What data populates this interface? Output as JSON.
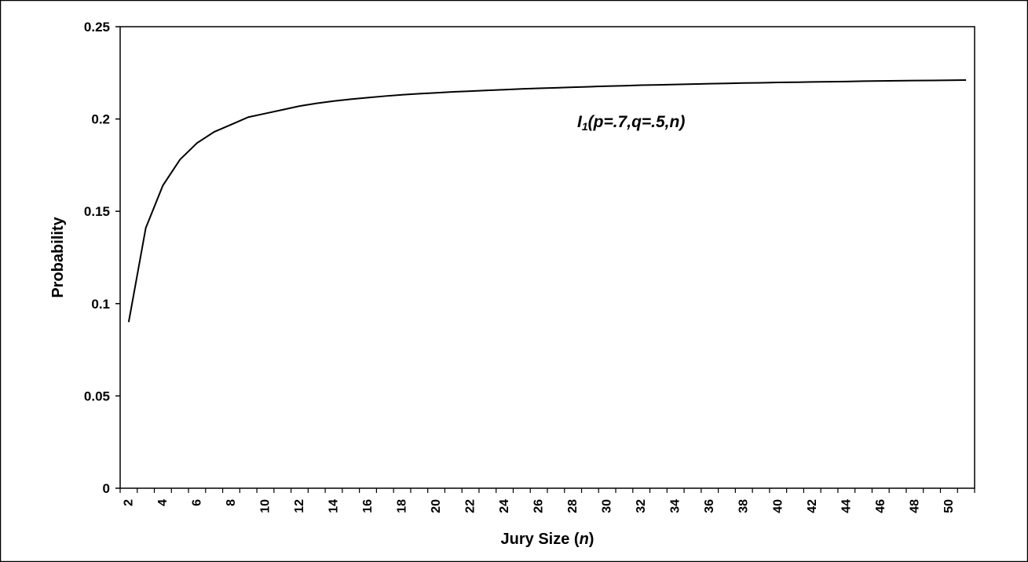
{
  "chart_data": {
    "type": "line",
    "xlabel": "Jury Size (n)",
    "xlabel_parts": [
      "Jury Size (",
      "n",
      ")"
    ],
    "ylabel": "Probability",
    "x_ticks": [
      2,
      4,
      6,
      8,
      10,
      12,
      14,
      16,
      18,
      20,
      22,
      24,
      26,
      28,
      30,
      32,
      34,
      36,
      38,
      40,
      42,
      44,
      46,
      48,
      50
    ],
    "x_range": [
      1.5,
      51.5
    ],
    "ylim": [
      0,
      0.25
    ],
    "y_ticks": [
      "0",
      "0.05",
      "0.1",
      "0.15",
      "0.2",
      "0.25"
    ],
    "y_tick_values": [
      0,
      0.05,
      0.1,
      0.15,
      0.2,
      0.25
    ],
    "grid": false,
    "annotation": {
      "text": "I1(p=.7,q=.5,n)",
      "symbol": "I",
      "subscript": "1",
      "args": "(p=.7,q=.5,n)"
    },
    "series": [
      {
        "x": [
          2,
          3,
          4,
          5,
          6,
          7,
          8,
          9,
          10,
          11,
          12,
          13,
          14,
          15,
          16,
          17,
          18,
          19,
          20,
          21,
          22,
          23,
          24,
          25,
          26,
          27,
          28,
          29,
          30,
          31,
          32,
          33,
          34,
          35,
          36,
          37,
          38,
          39,
          40,
          41,
          42,
          43,
          44,
          45,
          46,
          47,
          48,
          49,
          50,
          51
        ],
        "values": [
          0.09,
          0.141,
          0.164,
          0.178,
          0.187,
          0.193,
          0.197,
          0.201,
          0.203,
          0.205,
          0.207,
          0.2085,
          0.2097,
          0.2107,
          0.2116,
          0.2124,
          0.2131,
          0.2137,
          0.2142,
          0.2147,
          0.2151,
          0.2155,
          0.2159,
          0.2163,
          0.2166,
          0.2169,
          0.2172,
          0.2175,
          0.2178,
          0.218,
          0.2183,
          0.2185,
          0.2187,
          0.2189,
          0.2191,
          0.2193,
          0.2195,
          0.2196,
          0.2198,
          0.2199,
          0.2201,
          0.2202,
          0.2203,
          0.2205,
          0.2206,
          0.2207,
          0.2208,
          0.2209,
          0.221,
          0.2211
        ]
      }
    ]
  }
}
